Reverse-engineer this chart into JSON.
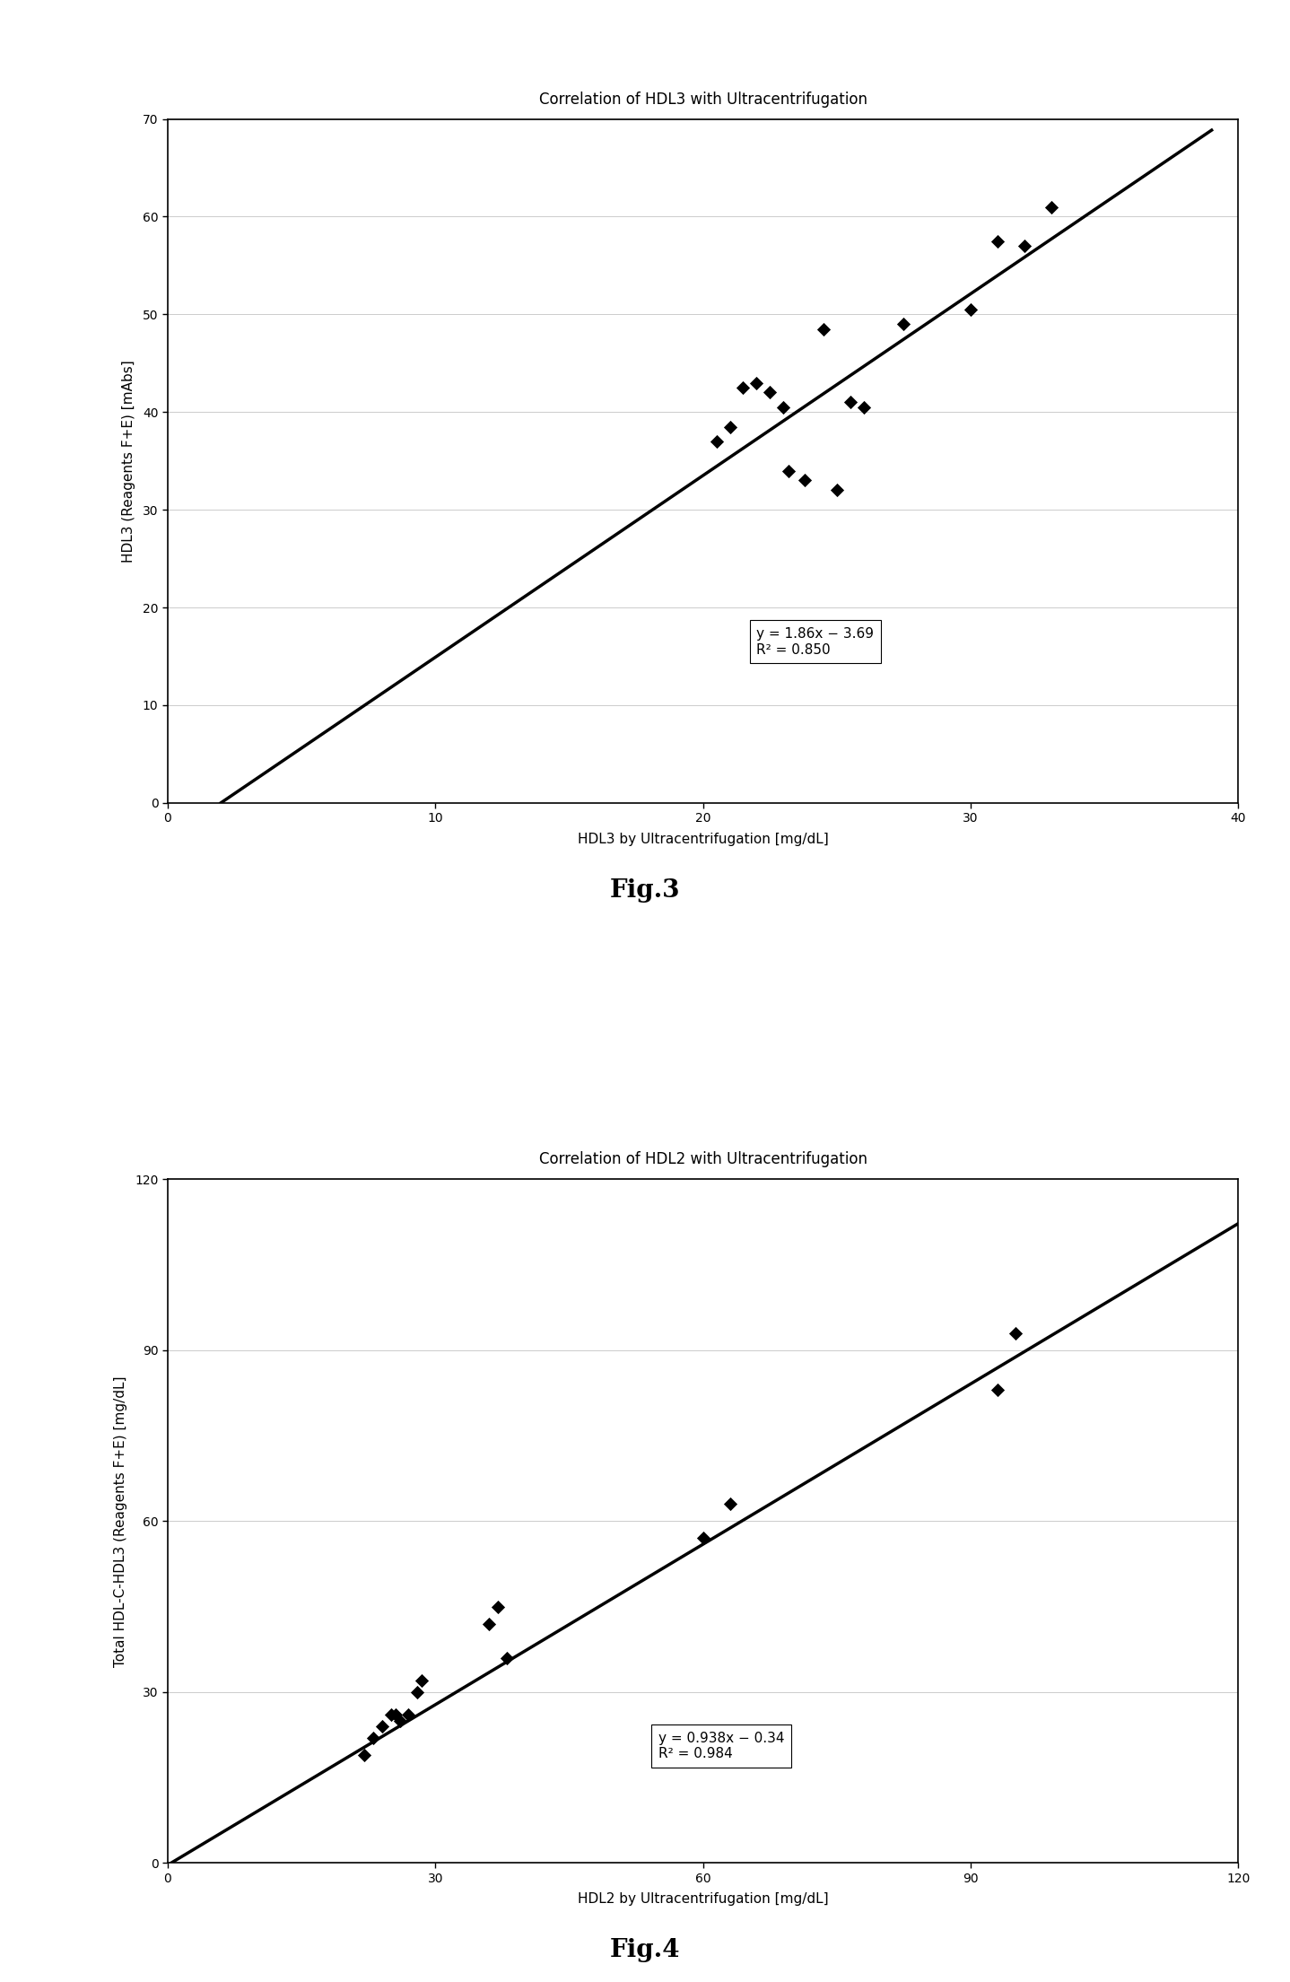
{
  "fig3": {
    "title": "Correlation of HDL3 with Ultracentrifugation",
    "xlabel": "HDL3 by Ultracentrifugation [mg/dL]",
    "ylabel": "HDL3 (Reagents F+E) [mAbs]",
    "xlim": [
      0,
      40
    ],
    "ylim": [
      0,
      70
    ],
    "xticks": [
      0,
      10,
      20,
      30,
      40
    ],
    "yticks": [
      0,
      10,
      20,
      30,
      40,
      50,
      60,
      70
    ],
    "scatter_x": [
      20.5,
      21.0,
      21.5,
      22.0,
      22.5,
      23.0,
      23.2,
      23.8,
      24.5,
      25.0,
      25.5,
      26.0,
      27.5,
      30.0,
      31.0,
      32.0,
      33.0
    ],
    "scatter_y": [
      37.0,
      38.5,
      42.5,
      43.0,
      42.0,
      40.5,
      34.0,
      33.0,
      48.5,
      32.0,
      41.0,
      40.5,
      49.0,
      50.5,
      57.5,
      57.0,
      61.0
    ],
    "line_slope": 1.86,
    "line_intercept": -3.69,
    "line_x_start": 1.985,
    "line_x_end": 39.0,
    "equation_line1": "y = 1.86x − 3.69",
    "equation_line2": "R² = 0.850",
    "eq_x": 22.0,
    "eq_y": 15.0,
    "fig_label": "Fig.3",
    "marker_color": "#000000",
    "line_color": "#000000"
  },
  "fig4": {
    "title": "Correlation of HDL2 with Ultracentrifugation",
    "xlabel": "HDL2 by Ultracentrifugation [mg/dL]",
    "ylabel": "Total HDL-C-HDL3 (Reagents F+E) [mg/dL]",
    "xlim": [
      0,
      120
    ],
    "ylim": [
      0,
      120
    ],
    "xticks": [
      0,
      30,
      60,
      90,
      120
    ],
    "yticks": [
      0,
      30,
      60,
      90,
      120
    ],
    "scatter_x": [
      22,
      23,
      24,
      25,
      25.5,
      26,
      27,
      28,
      28.5,
      36,
      37,
      38,
      60,
      63,
      93,
      95
    ],
    "scatter_y": [
      19,
      22,
      24,
      26,
      26,
      25,
      26,
      30,
      32,
      42,
      45,
      36,
      57,
      63,
      83,
      93
    ],
    "line_slope": 0.938,
    "line_intercept": -0.34,
    "line_x_start": 0.36,
    "line_x_end": 120,
    "equation_line1": "y = 0.938x − 0.34",
    "equation_line2": "R² = 0.984",
    "eq_x": 55.0,
    "eq_y": 18.0,
    "fig_label": "Fig.4",
    "marker_color": "#000000",
    "line_color": "#000000"
  },
  "background_color": "#ffffff",
  "title_fontsize": 12,
  "label_fontsize": 11,
  "tick_fontsize": 10,
  "fig_label_fontsize": 20,
  "eq_fontsize": 11,
  "grid_color": "#cccccc",
  "grid_linewidth": 0.7
}
